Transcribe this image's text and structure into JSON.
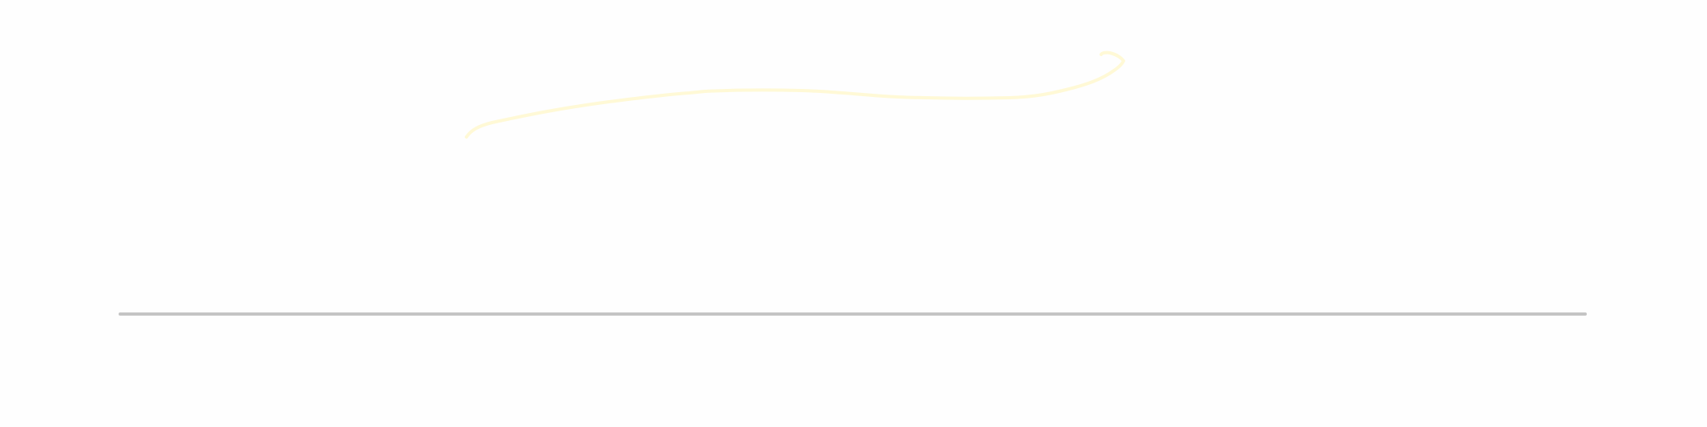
{
  "canvas": {
    "background": "#fefefe"
  },
  "stroke": {
    "color": "#fff9d6",
    "tool": "freehand-pen"
  },
  "baseline": {
    "color": "#c4c4c4"
  }
}
